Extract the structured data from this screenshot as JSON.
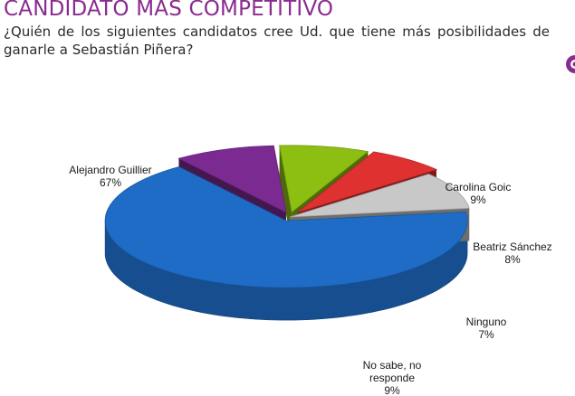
{
  "header": {
    "title": "CANDIDATO MÁS COMPETITIVO",
    "question": "¿Quién de los siguientes candidatos cree Ud. que tiene más posibilidades de ganarle a Sebastián Piñera?"
  },
  "corner_icon": "ring-icon",
  "chart_data": {
    "type": "pie",
    "style": "3d-exploded",
    "title": "",
    "slices": [
      {
        "label": "Alejandro Guillier",
        "value": 67,
        "display": "67%",
        "color": "#1f6cc6"
      },
      {
        "label": "Carolina Goic",
        "value": 9,
        "display": "9%",
        "color": "#7b2a91"
      },
      {
        "label": "Beatriz Sánchez",
        "value": 8,
        "display": "8%",
        "color": "#8cbf12"
      },
      {
        "label": "Ninguno",
        "value": 7,
        "display": "7%",
        "color": "#e03131"
      },
      {
        "label": "No sabe, no responde",
        "label_lines": [
          "No sabe, no",
          "responde"
        ],
        "value": 9,
        "display": "9%",
        "color": "#c8c8c8"
      }
    ],
    "legend": "none"
  }
}
